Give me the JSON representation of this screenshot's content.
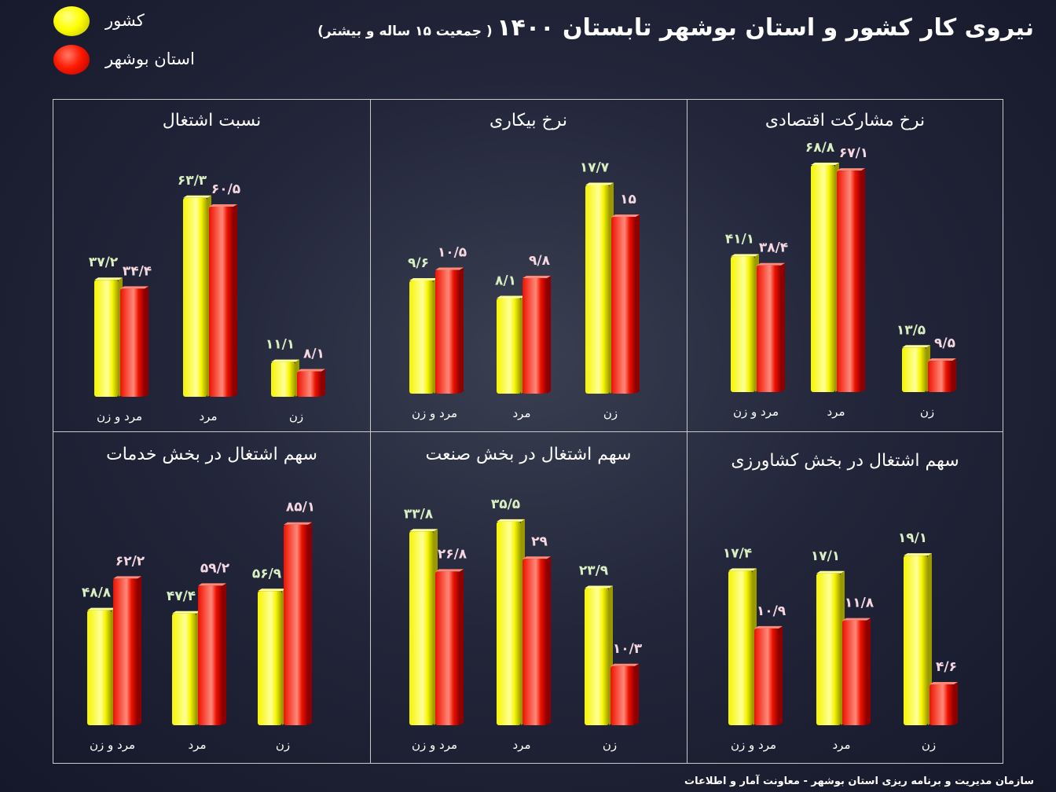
{
  "title": {
    "main": "نیروی کار کشور و استان بوشهر تابستان ۱۴۰۰",
    "sub": "( جمعیت ۱۵ ساله و بیشتر)"
  },
  "legend": [
    {
      "label": "کشور",
      "color": "#ffff00"
    },
    {
      "label": "استان بوشهر",
      "color": "#ff1a00"
    }
  ],
  "colors": {
    "country": "#f5f500",
    "province": "#ee1100",
    "country_value_text": "#d8efc2",
    "province_value_text": "#f4d7e0"
  },
  "footer": "سازمان مدیریت و برنامه ریزی استان بوشهر - معاونت آمار و اطلاعات",
  "chart_data": [
    {
      "type": "bar",
      "title": "نرخ مشارکت اقتصادی",
      "categories": [
        "مرد و زن",
        "مرد",
        "زن"
      ],
      "series": [
        {
          "name": "کشور",
          "values": [
            41.1,
            68.8,
            13.5
          ],
          "labels": [
            "۴۱/۱",
            "۶۸/۸",
            "۱۳/۵"
          ]
        },
        {
          "name": "استان بوشهر",
          "values": [
            38.4,
            67.1,
            9.5
          ],
          "labels": [
            "۳۸/۴",
            "۶۷/۱",
            "۹/۵"
          ]
        }
      ]
    },
    {
      "type": "bar",
      "title": "نرخ بیکاری",
      "categories": [
        "مرد و زن",
        "مرد",
        "زن"
      ],
      "series": [
        {
          "name": "کشور",
          "values": [
            9.6,
            8.1,
            17.7
          ],
          "labels": [
            "۹/۶",
            "۸/۱",
            "۱۷/۷"
          ]
        },
        {
          "name": "استان بوشهر",
          "values": [
            10.5,
            9.8,
            15
          ],
          "labels": [
            "۱۰/۵",
            "۹/۸",
            "۱۵"
          ]
        }
      ]
    },
    {
      "type": "bar",
      "title": "نسبت اشتغال",
      "categories": [
        "مرد و زن",
        "مرد",
        "زن"
      ],
      "series": [
        {
          "name": "کشور",
          "values": [
            37.2,
            63.3,
            11.1
          ],
          "labels": [
            "۳۷/۲",
            "۶۳/۳",
            "۱۱/۱"
          ]
        },
        {
          "name": "استان بوشهر",
          "values": [
            34.4,
            60.5,
            8.1
          ],
          "labels": [
            "۳۴/۴",
            "۶۰/۵",
            "۸/۱"
          ]
        }
      ]
    },
    {
      "type": "bar",
      "title": "سهم اشتغال در بخش کشاورزی",
      "categories": [
        "مرد و زن",
        "مرد",
        "زن"
      ],
      "series": [
        {
          "name": "کشور",
          "values": [
            17.4,
            17.1,
            19.1
          ],
          "labels": [
            "۱۷/۴",
            "۱۷/۱",
            "۱۹/۱"
          ]
        },
        {
          "name": "استان بوشهر",
          "values": [
            10.9,
            11.8,
            4.6
          ],
          "labels": [
            "۱۰/۹",
            "۱۱/۸",
            "۴/۶"
          ]
        }
      ]
    },
    {
      "type": "bar",
      "title": "سهم اشتغال در بخش صنعت",
      "categories": [
        "مرد و زن",
        "مرد",
        "زن"
      ],
      "series": [
        {
          "name": "کشور",
          "values": [
            33.8,
            35.5,
            23.9
          ],
          "labels": [
            "۳۳/۸",
            "۳۵/۵",
            "۲۳/۹"
          ]
        },
        {
          "name": "استان بوشهر",
          "values": [
            26.8,
            29,
            10.3
          ],
          "labels": [
            "۲۶/۸",
            "۲۹",
            "۱۰/۳"
          ]
        }
      ]
    },
    {
      "type": "bar",
      "title": "سهم اشتغال در بخش خدمات",
      "categories": [
        "مرد و زن",
        "مرد",
        "زن"
      ],
      "series": [
        {
          "name": "کشور",
          "values": [
            48.8,
            47.4,
            56.9
          ],
          "labels": [
            "۴۸/۸",
            "۴۷/۴",
            "۵۶/۹"
          ]
        },
        {
          "name": "استان بوشهر",
          "values": [
            62.2,
            59.2,
            85.1
          ],
          "labels": [
            "۶۲/۲",
            "۵۹/۲",
            "۸۵/۱"
          ]
        }
      ]
    }
  ]
}
